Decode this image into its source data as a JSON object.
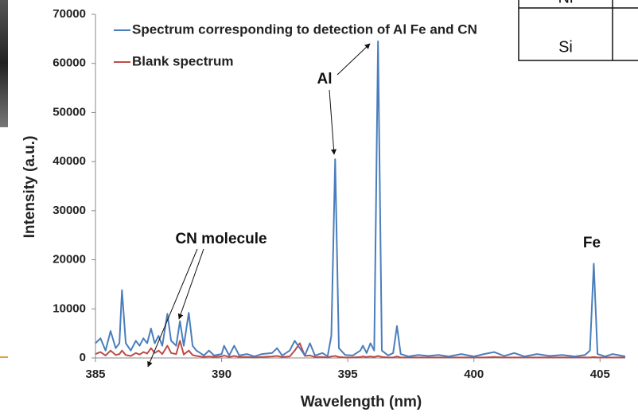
{
  "chart_data": {
    "type": "line",
    "xlabel": "Wavelength (nm)",
    "ylabel": "Intensity (a.u.)",
    "x": [
      385.0,
      385.2,
      385.4,
      385.6,
      385.8,
      385.95,
      386.05,
      386.2,
      386.4,
      386.6,
      386.75,
      386.9,
      387.05,
      387.2,
      387.35,
      387.5,
      387.65,
      387.85,
      388.0,
      388.2,
      388.35,
      388.5,
      388.7,
      388.85,
      389.0,
      389.3,
      389.5,
      389.7,
      390.0,
      390.1,
      390.3,
      390.5,
      390.7,
      391.0,
      391.3,
      391.6,
      392.0,
      392.2,
      392.4,
      392.7,
      392.9,
      393.1,
      393.3,
      393.5,
      393.7,
      394.0,
      394.2,
      394.35,
      394.5,
      394.65,
      394.9,
      395.2,
      395.5,
      395.6,
      395.75,
      395.9,
      396.05,
      396.2,
      396.35,
      396.6,
      396.8,
      396.95,
      397.1,
      397.4,
      397.8,
      398.2,
      398.6,
      399.0,
      399.5,
      400.0,
      400.4,
      400.8,
      401.2,
      401.6,
      402.0,
      402.5,
      403.0,
      403.5,
      404.0,
      404.4,
      404.6,
      404.75,
      404.9,
      405.2,
      405.5,
      405.8,
      406.0
    ],
    "series": [
      {
        "name": "Spectrum corresponding to detection of Al Fe and CN",
        "color": "#4a7ebb",
        "values": [
          3000,
          4000,
          1500,
          5500,
          2000,
          3000,
          13800,
          3000,
          1500,
          3500,
          2500,
          4000,
          3000,
          6000,
          3000,
          4500,
          2500,
          9000,
          3500,
          2500,
          7500,
          2500,
          9200,
          2500,
          1500,
          500,
          1500,
          500,
          800,
          2500,
          500,
          2500,
          500,
          800,
          300,
          800,
          1000,
          2000,
          500,
          1500,
          3500,
          2000,
          500,
          3000,
          500,
          1000,
          300,
          4500,
          40500,
          2000,
          600,
          500,
          1500,
          2500,
          1000,
          3000,
          1500,
          64500,
          1500,
          500,
          1000,
          6500,
          800,
          300,
          600,
          400,
          600,
          300,
          800,
          300,
          800,
          1200,
          400,
          1000,
          300,
          800,
          400,
          600,
          300,
          600,
          1500,
          19200,
          800,
          300,
          800,
          500,
          300
        ]
      },
      {
        "name": "Blank spectrum",
        "color": "#be4b48",
        "values": [
          800,
          1200,
          500,
          1500,
          600,
          800,
          1500,
          600,
          400,
          1000,
          700,
          1200,
          900,
          2000,
          1000,
          1500,
          800,
          2500,
          1000,
          800,
          3500,
          700,
          1500,
          600,
          400,
          200,
          300,
          200,
          300,
          500,
          200,
          400,
          200,
          200,
          100,
          200,
          300,
          400,
          200,
          300,
          1500,
          3000,
          400,
          500,
          200,
          200,
          100,
          300,
          400,
          200,
          100,
          100,
          200,
          300,
          200,
          300,
          200,
          400,
          200,
          100,
          100,
          300,
          100,
          100,
          100,
          100,
          100,
          100,
          100,
          100,
          100,
          200,
          100,
          100,
          100,
          100,
          100,
          100,
          100,
          100,
          100,
          200,
          100,
          100,
          100,
          100,
          100
        ]
      }
    ],
    "xlim": [
      385,
      406
    ],
    "xticks": [
      385,
      390,
      395,
      400,
      405
    ],
    "ylim": [
      0,
      70000
    ],
    "yticks": [
      0,
      10000,
      20000,
      30000,
      40000,
      50000,
      60000,
      70000
    ],
    "grid": false,
    "legend": "top-left",
    "annotations": [
      "Al",
      "CN molecule",
      "Fe"
    ]
  },
  "table_cells": [
    "Ni",
    "Si"
  ]
}
